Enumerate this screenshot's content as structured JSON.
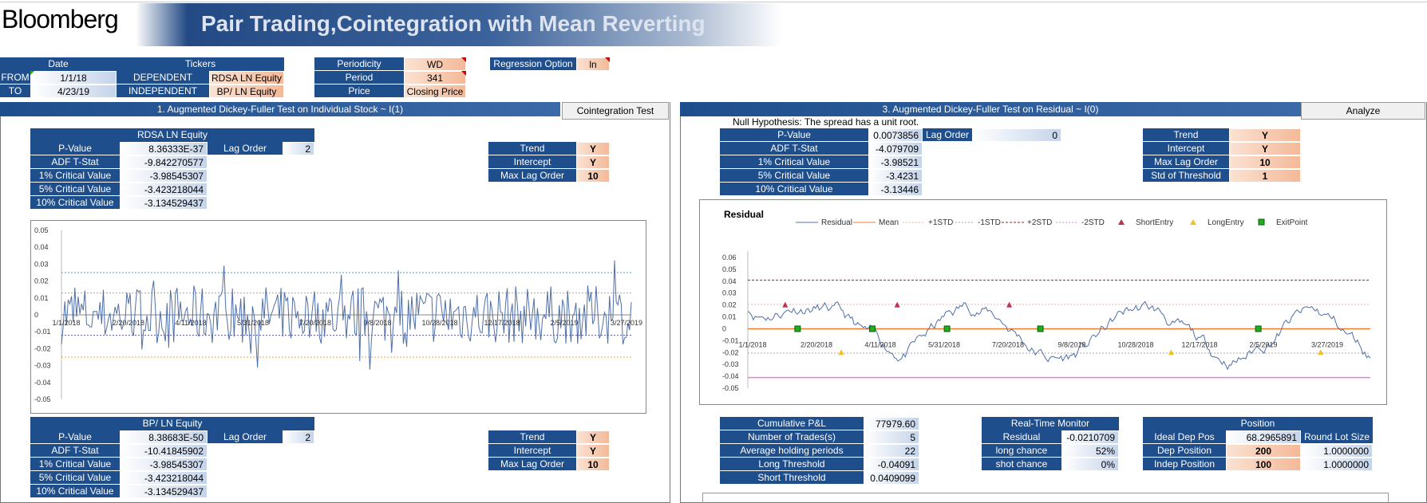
{
  "header": {
    "logo": "Bloomberg",
    "title": "Pair Trading,Cointegration with Mean Reverting"
  },
  "params": {
    "date_header": "Date",
    "tickers_header": "Tickers",
    "from_label": "FROM",
    "from_value": "1/1/18",
    "to_label": "TO",
    "to_value": "4/23/19",
    "dependent_label": "DEPENDENT",
    "dependent_value": "RDSA LN Equity",
    "independent_label": "INDEPENDENT",
    "independent_value": "BP/ LN Equity",
    "periodicity_label": "Periodicity",
    "periodicity_value": "WD",
    "period_label": "Period",
    "period_value": "341",
    "price_label": "Price",
    "price_value": "Closing Price",
    "regression_label": "Regression Option",
    "regression_value": "ln"
  },
  "section1": {
    "title": "1. Augmented Dickey-Fuller Test on Individual Stock ~ I(1)",
    "button": "Cointegration Test"
  },
  "section3": {
    "title": "3. Augmented Dickey-Fuller Test on Residual ~ I(0)",
    "button": "Analyze",
    "null_hypothesis": "Null Hypothesis: The spread has a unit root."
  },
  "stock1": {
    "name": "RDSA LN Equity",
    "pvalue_label": "P-Value",
    "pvalue": "8.36333E-37",
    "lag_label": "Lag Order",
    "lag": "2",
    "adf_label": "ADF T-Stat",
    "adf": "-9.842270577",
    "cv1_label": "1% Critical Value",
    "cv1": "-3.98545307",
    "cv5_label": "5% Critical Value",
    "cv5": "-3.423218044",
    "cv10_label": "10% Critical Value",
    "cv10": "-3.134529437",
    "trend_label": "Trend",
    "trend": "Y",
    "intercept_label": "Intercept",
    "intercept": "Y",
    "maxlag_label": "Max Lag Order",
    "maxlag": "10"
  },
  "stock2": {
    "name": "BP/ LN Equity",
    "pvalue_label": "P-Value",
    "pvalue": "8.38683E-50",
    "lag_label": "Lag Order",
    "lag": "2",
    "adf_label": "ADF T-Stat",
    "adf": "-10.41845902",
    "cv1_label": "1% Critical Value",
    "cv1": "-3.98545307",
    "cv5_label": "5% Critical Value",
    "cv5": "-3.423218044",
    "cv10_label": "10% Critical Value",
    "cv10": "-3.134529437",
    "trend_label": "Trend",
    "trend": "Y",
    "intercept_label": "Intercept",
    "intercept": "Y",
    "maxlag_label": "Max Lag Order",
    "maxlag": "10"
  },
  "residual": {
    "pvalue_label": "P-Value",
    "pvalue": "0.0073856",
    "lag_label": "Lag Order",
    "lag": "0",
    "adf_label": "ADF T-Stat",
    "adf": "-4.079709",
    "cv1_label": "1% Critical Value",
    "cv1": "-3.98521",
    "cv5_label": "5% Critical Value",
    "cv5": "-3.4231",
    "cv10_label": "10% Critical Value",
    "cv10": "-3.13446",
    "trend_label": "Trend",
    "trend": "Y",
    "intercept_label": "Intercept",
    "intercept": "Y",
    "maxlag_label": "Max Lag Order",
    "maxlag": "10",
    "std_label": "Std of Threshold",
    "std": "1"
  },
  "performance": {
    "cum_pl_label": "Cumulative P&L",
    "cum_pl": "77979.60",
    "trades_label": "Number of Trades(s)",
    "trades": "5",
    "avg_hold_label": "Average holding periods",
    "avg_hold": "22",
    "long_th_label": "Long Threshold",
    "long_th": "-0.04091",
    "short_th_label": "Short Threshold",
    "short_th": "0.0409099"
  },
  "monitor": {
    "title": "Real-Time Monitor",
    "residual_label": "Residual",
    "residual": "-0.0210709",
    "long_label": "long chance",
    "long": "52%",
    "shot_label": "shot chance",
    "shot": "0%"
  },
  "position": {
    "title": "Position",
    "ideal_label": "Ideal Dep Pos",
    "ideal": "68.2965891",
    "lot_label": "Round Lot Size",
    "dep_label": "Dep Position",
    "dep": "200",
    "dep_lot": "1.0000000",
    "indep_label": "Indep Position",
    "indep": "100",
    "indep_lot": "1.0000000"
  },
  "chart_data": [
    {
      "type": "line",
      "title": "",
      "x_ticks": [
        "1/1/2018",
        "2/20/2018",
        "4/11/2018",
        "5/31/2018",
        "7/20/2018",
        "9/8/2018",
        "10/28/2018",
        "12/17/2018",
        "2/5/2019",
        "3/27/2019"
      ],
      "y_ticks": [
        "0.05",
        "0.04",
        "0.03",
        "0.02",
        "0.01",
        "0",
        "-0.01",
        "-0.02",
        "-0.03",
        "-0.04",
        "-0.05"
      ],
      "ylim": [
        -0.05,
        0.05
      ],
      "hlines": [
        0.025,
        0.013,
        -0.012,
        -0.025
      ],
      "hline_colors": [
        "#4aa8c8",
        "#9bbb59",
        "#6060b0",
        "#f0a030"
      ],
      "line_color": "#4f6fa8",
      "n_points": 341
    },
    {
      "type": "line",
      "title": "Residual",
      "x_ticks": [
        "1/1/2018",
        "2/20/2018",
        "4/11/2018",
        "5/31/2018",
        "7/20/2018",
        "9/8/2018",
        "10/28/2018",
        "12/17/2018",
        "2/5/2019",
        "3/27/2019"
      ],
      "y_ticks": [
        "0.06",
        "0.05",
        "0.04",
        "0.03",
        "0.02",
        "0.01",
        "0",
        "-0.01",
        "-0.02",
        "-0.03",
        "-0.04",
        "-0.05"
      ],
      "ylim": [
        -0.05,
        0.06
      ],
      "legend": [
        "Residual",
        "Mean",
        "+1STD",
        "-1STD",
        "+2STD",
        "-2STD",
        "ShortEntry",
        "LongEntry",
        "ExitPoint"
      ],
      "mean": 0,
      "std1": 0.0205,
      "std2": 0.041,
      "short_entries": [
        [
          0.06,
          0.02
        ],
        [
          0.24,
          0.02
        ],
        [
          0.42,
          0.02
        ]
      ],
      "long_entries": [
        [
          0.15,
          -0.02
        ],
        [
          0.68,
          -0.02
        ],
        [
          0.92,
          -0.02
        ]
      ],
      "exit_points": [
        [
          0.08,
          0.0
        ],
        [
          0.2,
          0.0
        ],
        [
          0.32,
          0.0
        ],
        [
          0.47,
          0.0
        ],
        [
          0.82,
          0.0
        ]
      ]
    }
  ]
}
